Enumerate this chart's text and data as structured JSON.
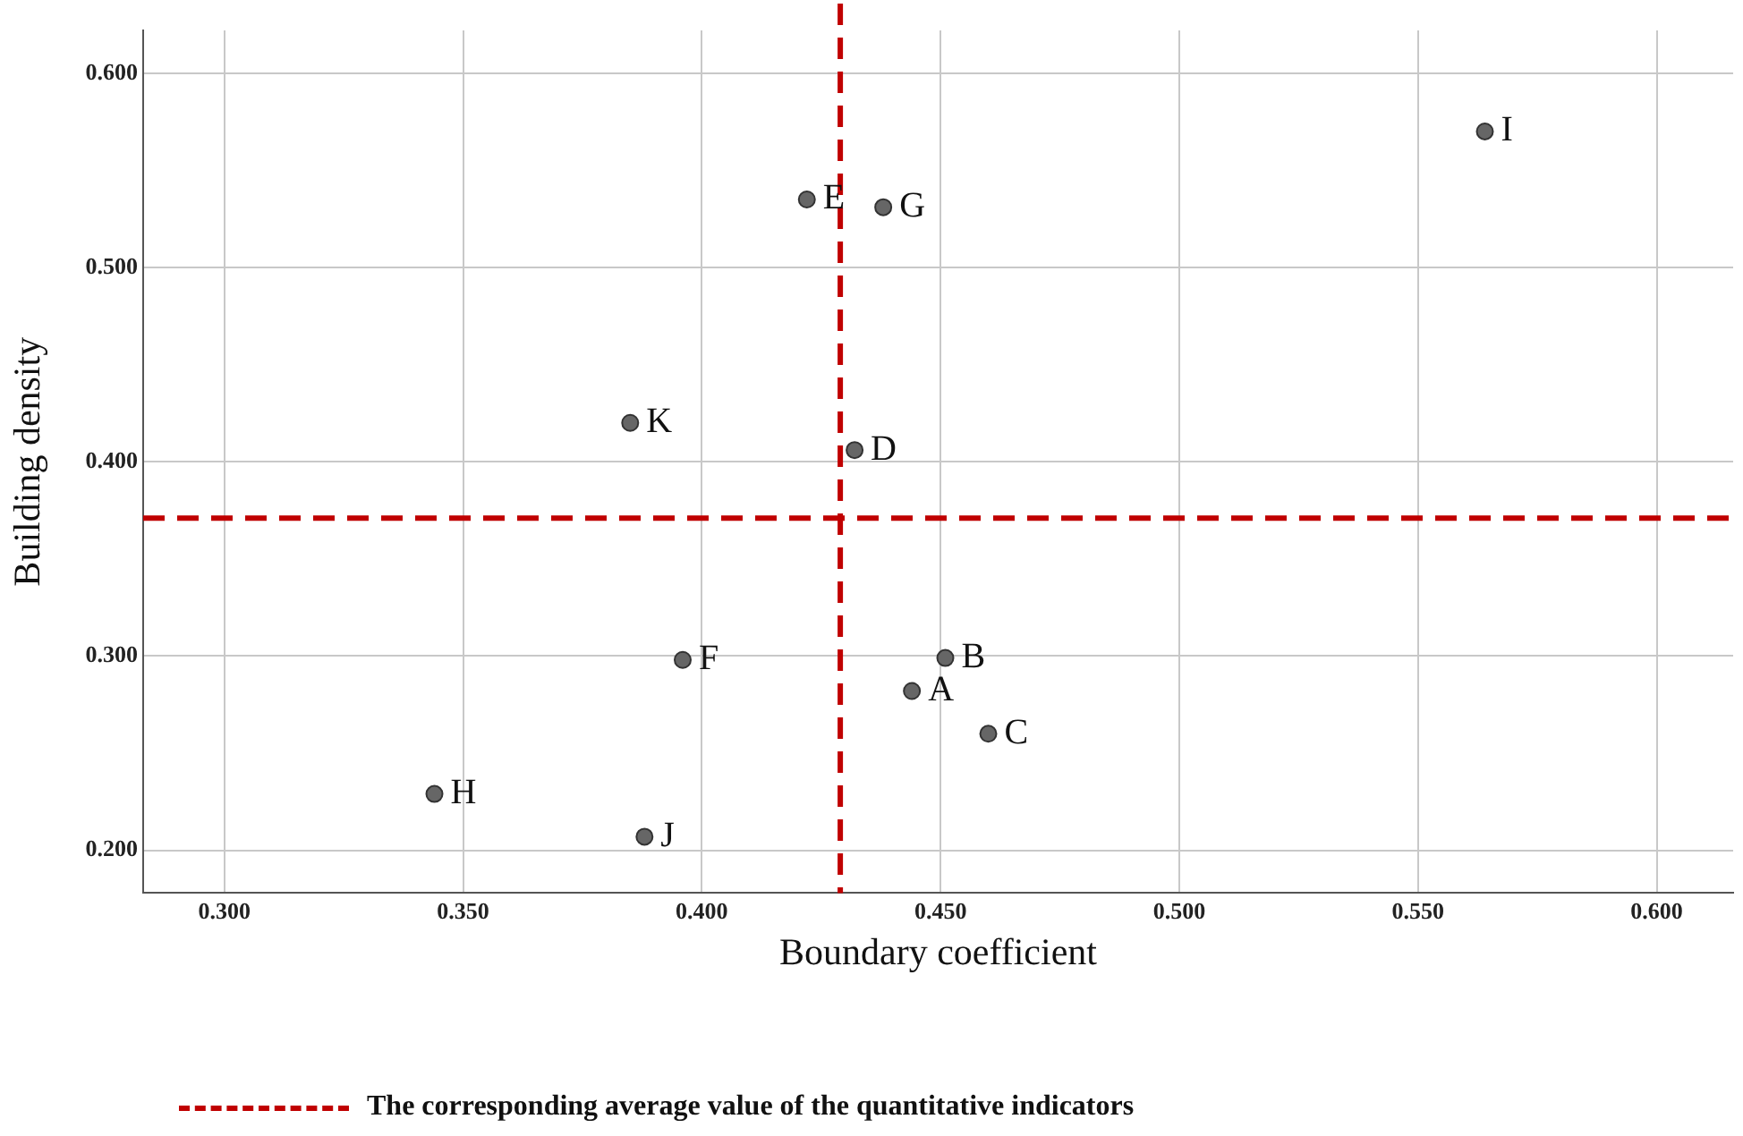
{
  "chart_data": {
    "type": "scatter",
    "xlabel": "Boundary coefficient",
    "ylabel": "Building density",
    "x": [
      0.444,
      0.451,
      0.46,
      0.432,
      0.422,
      0.396,
      0.438,
      0.344,
      0.564,
      0.388,
      0.385
    ],
    "series": [
      {
        "color": "#666666",
        "values": [
          0.282,
          0.299,
          0.26,
          0.406,
          0.535,
          0.298,
          0.531,
          0.229,
          0.57,
          0.207,
          0.42
        ]
      }
    ],
    "xlim": [
      0.283,
      0.616
    ],
    "ylim": [
      0.178,
      0.622
    ],
    "xticks": [
      {
        "value": 0.3,
        "label": "0.300"
      },
      {
        "value": 0.35,
        "label": "0.350"
      },
      {
        "value": 0.4,
        "label": "0.400"
      },
      {
        "value": 0.45,
        "label": "0.450"
      },
      {
        "value": 0.5,
        "label": "0.500"
      },
      {
        "value": 0.55,
        "label": "0.550"
      },
      {
        "value": 0.6,
        "label": "0.600"
      }
    ],
    "yticks": [
      {
        "value": 0.2,
        "label": "0.200"
      },
      {
        "value": 0.3,
        "label": "0.300"
      },
      {
        "value": 0.4,
        "label": "0.400"
      },
      {
        "value": 0.5,
        "label": "0.500"
      },
      {
        "value": 0.6,
        "label": "0.600"
      }
    ],
    "grid": true,
    "marker": "circle",
    "ref_lines": [
      {
        "axis": "x",
        "value": 0.429,
        "color": "#c00000",
        "line_style": "dashed"
      },
      {
        "axis": "y",
        "value": 0.371,
        "color": "#c00000",
        "line_style": "dashed"
      }
    ],
    "annotations": [
      {
        "text": "A",
        "x": 0.444,
        "y": 0.282
      },
      {
        "text": "B",
        "x": 0.451,
        "y": 0.299
      },
      {
        "text": "C",
        "x": 0.46,
        "y": 0.26
      },
      {
        "text": "D",
        "x": 0.432,
        "y": 0.406
      },
      {
        "text": "E",
        "x": 0.422,
        "y": 0.535
      },
      {
        "text": "F",
        "x": 0.396,
        "y": 0.298
      },
      {
        "text": "G",
        "x": 0.438,
        "y": 0.531
      },
      {
        "text": "H",
        "x": 0.344,
        "y": 0.229
      },
      {
        "text": "I",
        "x": 0.564,
        "y": 0.57
      },
      {
        "text": "J",
        "x": 0.388,
        "y": 0.207
      },
      {
        "text": "K",
        "x": 0.385,
        "y": 0.42
      },
      "The corresponding average value of the quantitative indicators"
    ]
  }
}
